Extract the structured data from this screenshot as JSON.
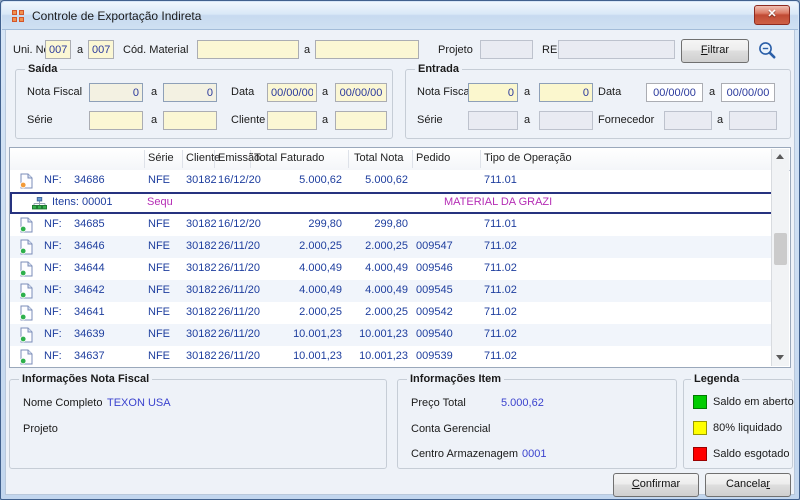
{
  "window": {
    "title": "Controle de Exportação Indireta",
    "close_glyph": "✕"
  },
  "filter": {
    "uni_neg_label": "Uni. Neg.",
    "uni_neg_from": "007",
    "uni_neg_to": "007",
    "cod_material_label": "Cód. Material",
    "cod_material_from": "",
    "cod_material_to": "",
    "projeto_label": "Projeto",
    "projeto_value": "",
    "re_label": "RE",
    "re_value": "",
    "filtrar_label": "Filtrar",
    "filtrar_underline_index": 0,
    "a_label": "a"
  },
  "saida": {
    "title": "Saída",
    "nota_fiscal_label": "Nota Fiscal",
    "nota_fiscal_from": "0",
    "nota_fiscal_to": "0",
    "data_label": "Data",
    "data_from": "00/00/00",
    "data_to": "00/00/00",
    "serie_label": "Série",
    "serie_from": "",
    "serie_to": "",
    "cliente_label": "Cliente",
    "cliente_from": "",
    "cliente_to": "",
    "a_label": "a"
  },
  "entrada": {
    "title": "Entrada",
    "nota_fiscal_label": "Nota Fiscal",
    "nota_fiscal_from": "0",
    "nota_fiscal_to": "0",
    "data_label": "Data",
    "data_from": "00/00/00",
    "data_to": "00/00/00",
    "serie_label": "Série",
    "serie_from": "",
    "serie_to": "",
    "fornecedor_label": "Fornecedor",
    "fornecedor_from": "",
    "fornecedor_to": "",
    "a_label": "a"
  },
  "grid": {
    "headers": {
      "serie": "Série",
      "cliente": "Cliente",
      "emissao": "Emissão",
      "total_faturado": "Total Faturado",
      "total_nota": "Total Nota",
      "pedido": "Pedido",
      "tipo_operacao": "Tipo de Operação"
    },
    "nf_prefix": "NF:",
    "rows": [
      {
        "nf": "34686",
        "serie": "NFE",
        "cliente": "30182",
        "emissao": "16/12/20",
        "total_faturado": "5.000,62",
        "total_nota": "5.000,62",
        "pedido": "",
        "tipo_operacao": "711.01",
        "doc_dot": "orange"
      },
      {
        "nf": "34685",
        "serie": "NFE",
        "cliente": "30182",
        "emissao": "16/12/20",
        "total_faturado": "299,80",
        "total_nota": "299,80",
        "pedido": "",
        "tipo_operacao": "711.01",
        "doc_dot": "green"
      },
      {
        "nf": "34646",
        "serie": "NFE",
        "cliente": "30182",
        "emissao": "26/11/20",
        "total_faturado": "2.000,25",
        "total_nota": "2.000,25",
        "pedido": "009547",
        "tipo_operacao": "711.02",
        "doc_dot": "green"
      },
      {
        "nf": "34644",
        "serie": "NFE",
        "cliente": "30182",
        "emissao": "26/11/20",
        "total_faturado": "4.000,49",
        "total_nota": "4.000,49",
        "pedido": "009546",
        "tipo_operacao": "711.02",
        "doc_dot": "green"
      },
      {
        "nf": "34642",
        "serie": "NFE",
        "cliente": "30182",
        "emissao": "26/11/20",
        "total_faturado": "4.000,49",
        "total_nota": "4.000,49",
        "pedido": "009545",
        "tipo_operacao": "711.02",
        "doc_dot": "green"
      },
      {
        "nf": "34641",
        "serie": "NFE",
        "cliente": "30182",
        "emissao": "26/11/20",
        "total_faturado": "2.000,25",
        "total_nota": "2.000,25",
        "pedido": "009542",
        "tipo_operacao": "711.02",
        "doc_dot": "green"
      },
      {
        "nf": "34639",
        "serie": "NFE",
        "cliente": "30182",
        "emissao": "26/11/20",
        "total_faturado": "10.001,23",
        "total_nota": "10.001,23",
        "pedido": "009540",
        "tipo_operacao": "711.02",
        "doc_dot": "green"
      },
      {
        "nf": "34637",
        "serie": "NFE",
        "cliente": "30182",
        "emissao": "26/11/20",
        "total_faturado": "10.001,23",
        "total_nota": "10.001,23",
        "pedido": "009539",
        "tipo_operacao": "711.02",
        "doc_dot": "green"
      }
    ],
    "item_row": {
      "label": "Itens: 00001",
      "sequencia_text": "Sequênc",
      "material_text": "MATERIAL DA GRAZI"
    }
  },
  "info_nota_fiscal": {
    "title": "Informações Nota Fiscal",
    "nome_completo_label": "Nome Completo",
    "nome_completo_value": "TEXON USA",
    "projeto_label": "Projeto",
    "projeto_value": ""
  },
  "info_item": {
    "title": "Informações Item",
    "preco_total_label": "Preço Total",
    "preco_total_value": "5.000,62",
    "conta_gerencial_label": "Conta Gerencial",
    "conta_gerencial_value": "",
    "centro_armazenagem_label": "Centro Armazenagem",
    "centro_armazenagem_value": "0001"
  },
  "legenda": {
    "title": "Legenda",
    "items": [
      {
        "color": "#00CC00",
        "label": "Saldo em aberto"
      },
      {
        "color": "#FFFF00",
        "label": "80% liquidado"
      },
      {
        "color": "#FF0000",
        "label": "Saldo esgotado"
      }
    ]
  },
  "footer": {
    "confirmar_label": "Confirmar",
    "confirmar_underline_index": 0,
    "cancelar_label": "Cancelar",
    "cancelar_underline_index": 7
  }
}
